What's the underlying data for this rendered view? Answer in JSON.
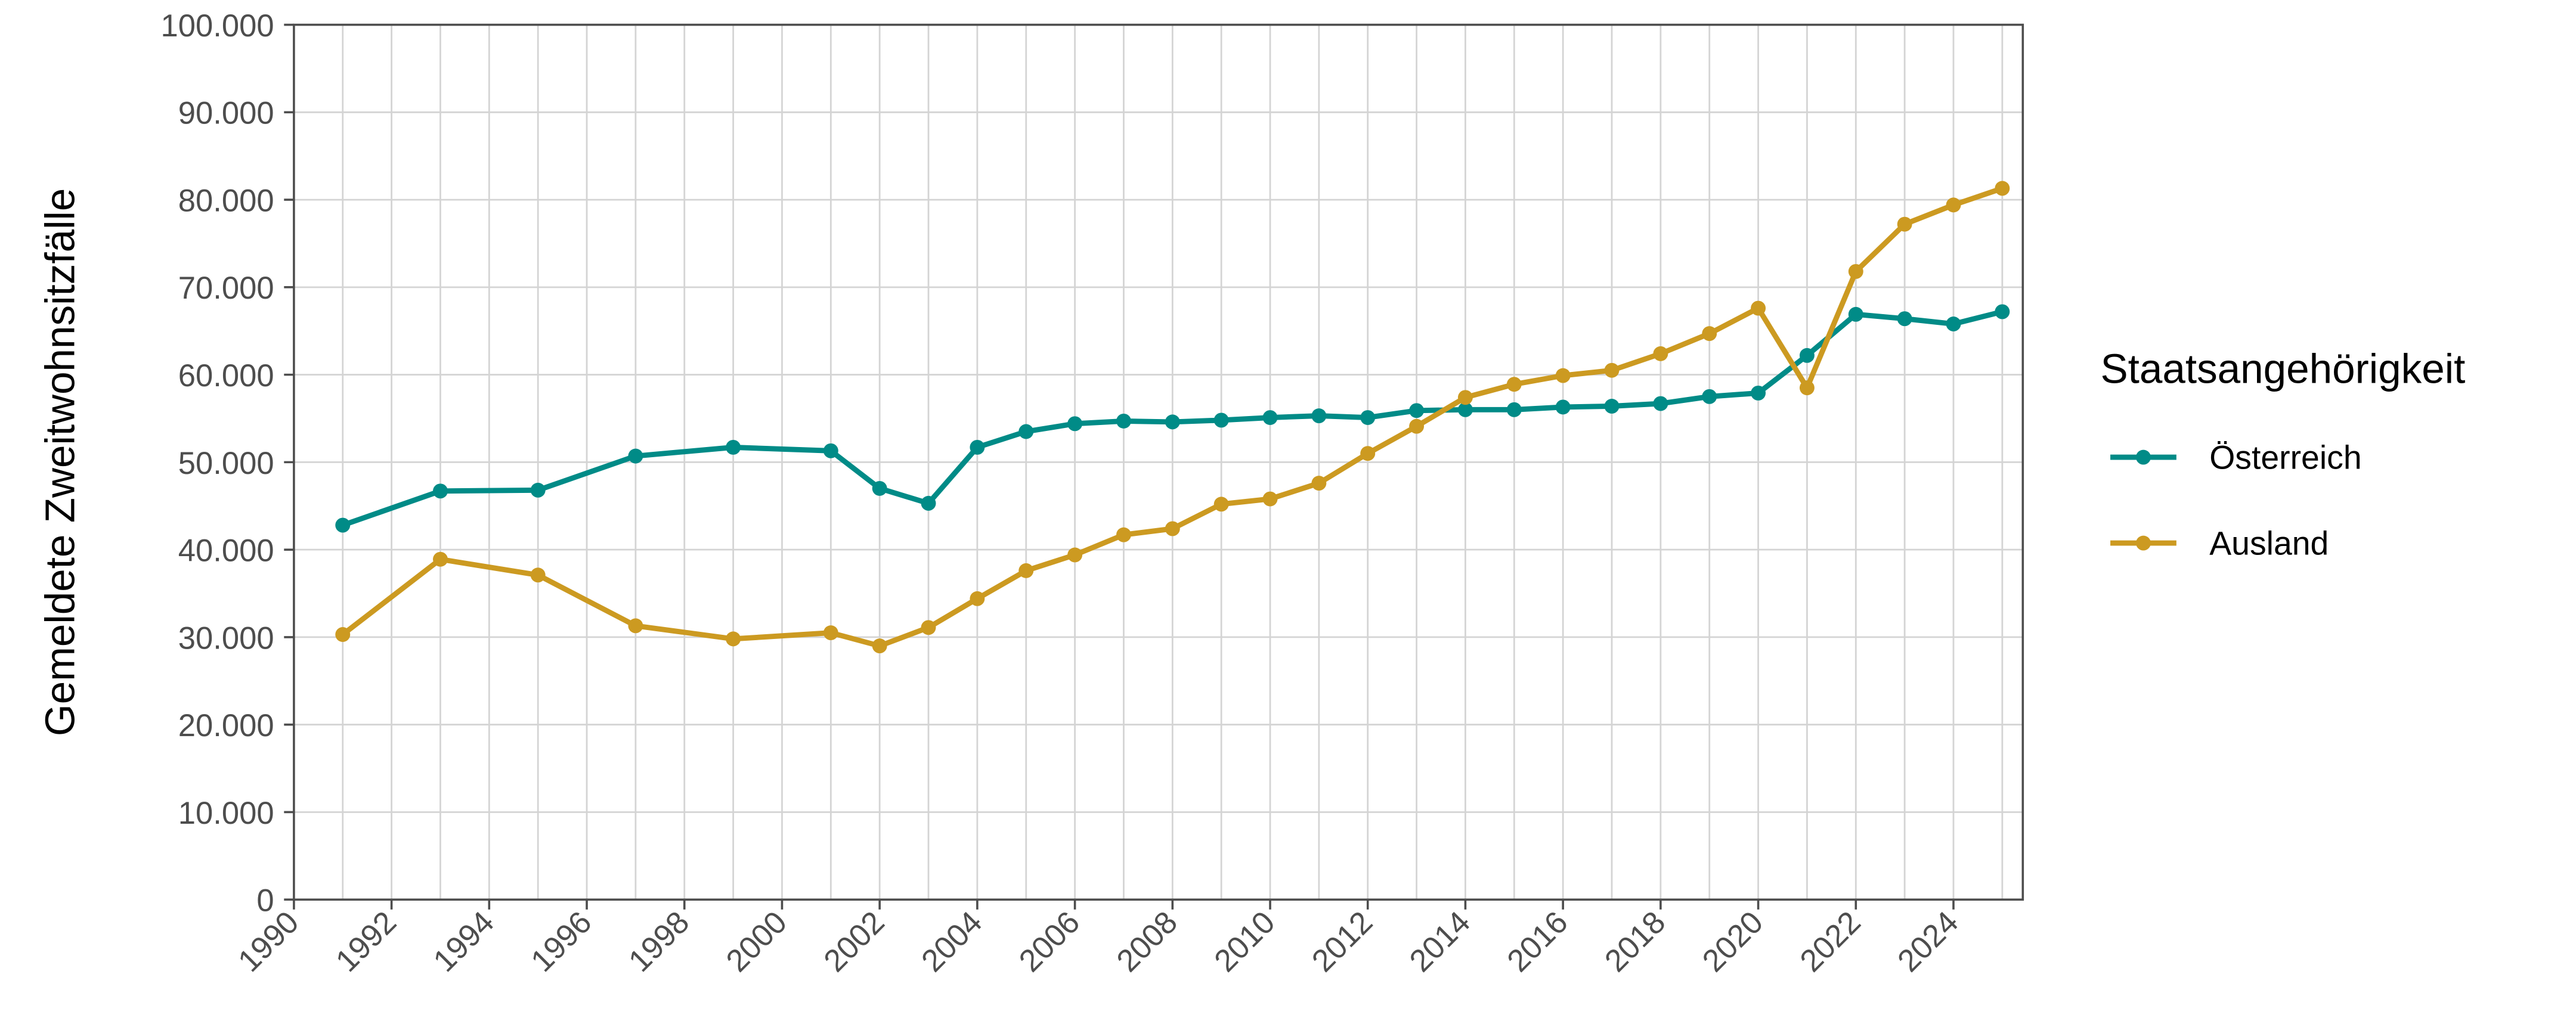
{
  "chart_data": {
    "type": "line",
    "title": "",
    "xlabel": "",
    "ylabel": "Gemeldete Zweitwohnsitzfälle",
    "xlim": [
      1990,
      2025
    ],
    "ylim": [
      0,
      100000
    ],
    "grid": true,
    "x_ticks": [
      "1990",
      "1992",
      "1994",
      "1996",
      "1998",
      "2000",
      "2002",
      "2004",
      "2006",
      "2008",
      "2010",
      "2012",
      "2014",
      "2016",
      "2018",
      "2020",
      "2022",
      "2024"
    ],
    "y_ticks": [
      "0",
      "10.000",
      "20.000",
      "30.000",
      "40.000",
      "50.000",
      "60.000",
      "70.000",
      "80.000",
      "90.000",
      "100.000"
    ],
    "legend": {
      "title": "Staatsangehörigkeit",
      "placement": "right"
    },
    "x": [
      1991,
      1993,
      1995,
      1997,
      1999,
      2001,
      2002,
      2003,
      2004,
      2005,
      2006,
      2007,
      2008,
      2009,
      2010,
      2011,
      2012,
      2013,
      2014,
      2015,
      2016,
      2017,
      2018,
      2019,
      2020,
      2021,
      2022,
      2023,
      2024,
      2025
    ],
    "series": [
      {
        "name": "Österreich",
        "color": "#008b87",
        "values": [
          42800,
          46700,
          46800,
          50700,
          51700,
          51300,
          47000,
          45300,
          51700,
          53500,
          54400,
          54700,
          54600,
          54800,
          55100,
          55300,
          55100,
          55900,
          56000,
          56000,
          56300,
          56400,
          56700,
          57500,
          57900,
          62200,
          66900,
          66400,
          65800,
          67200
        ]
      },
      {
        "name": "Ausland",
        "color": "#cc9a21",
        "values": [
          30300,
          38900,
          37100,
          31300,
          29800,
          30500,
          29000,
          31100,
          34400,
          37600,
          39400,
          41700,
          42400,
          45200,
          45800,
          47600,
          51000,
          54100,
          57400,
          58900,
          59900,
          60500,
          62400,
          64700,
          67600,
          58500,
          71800,
          77200,
          79400,
          81300
        ]
      }
    ]
  }
}
